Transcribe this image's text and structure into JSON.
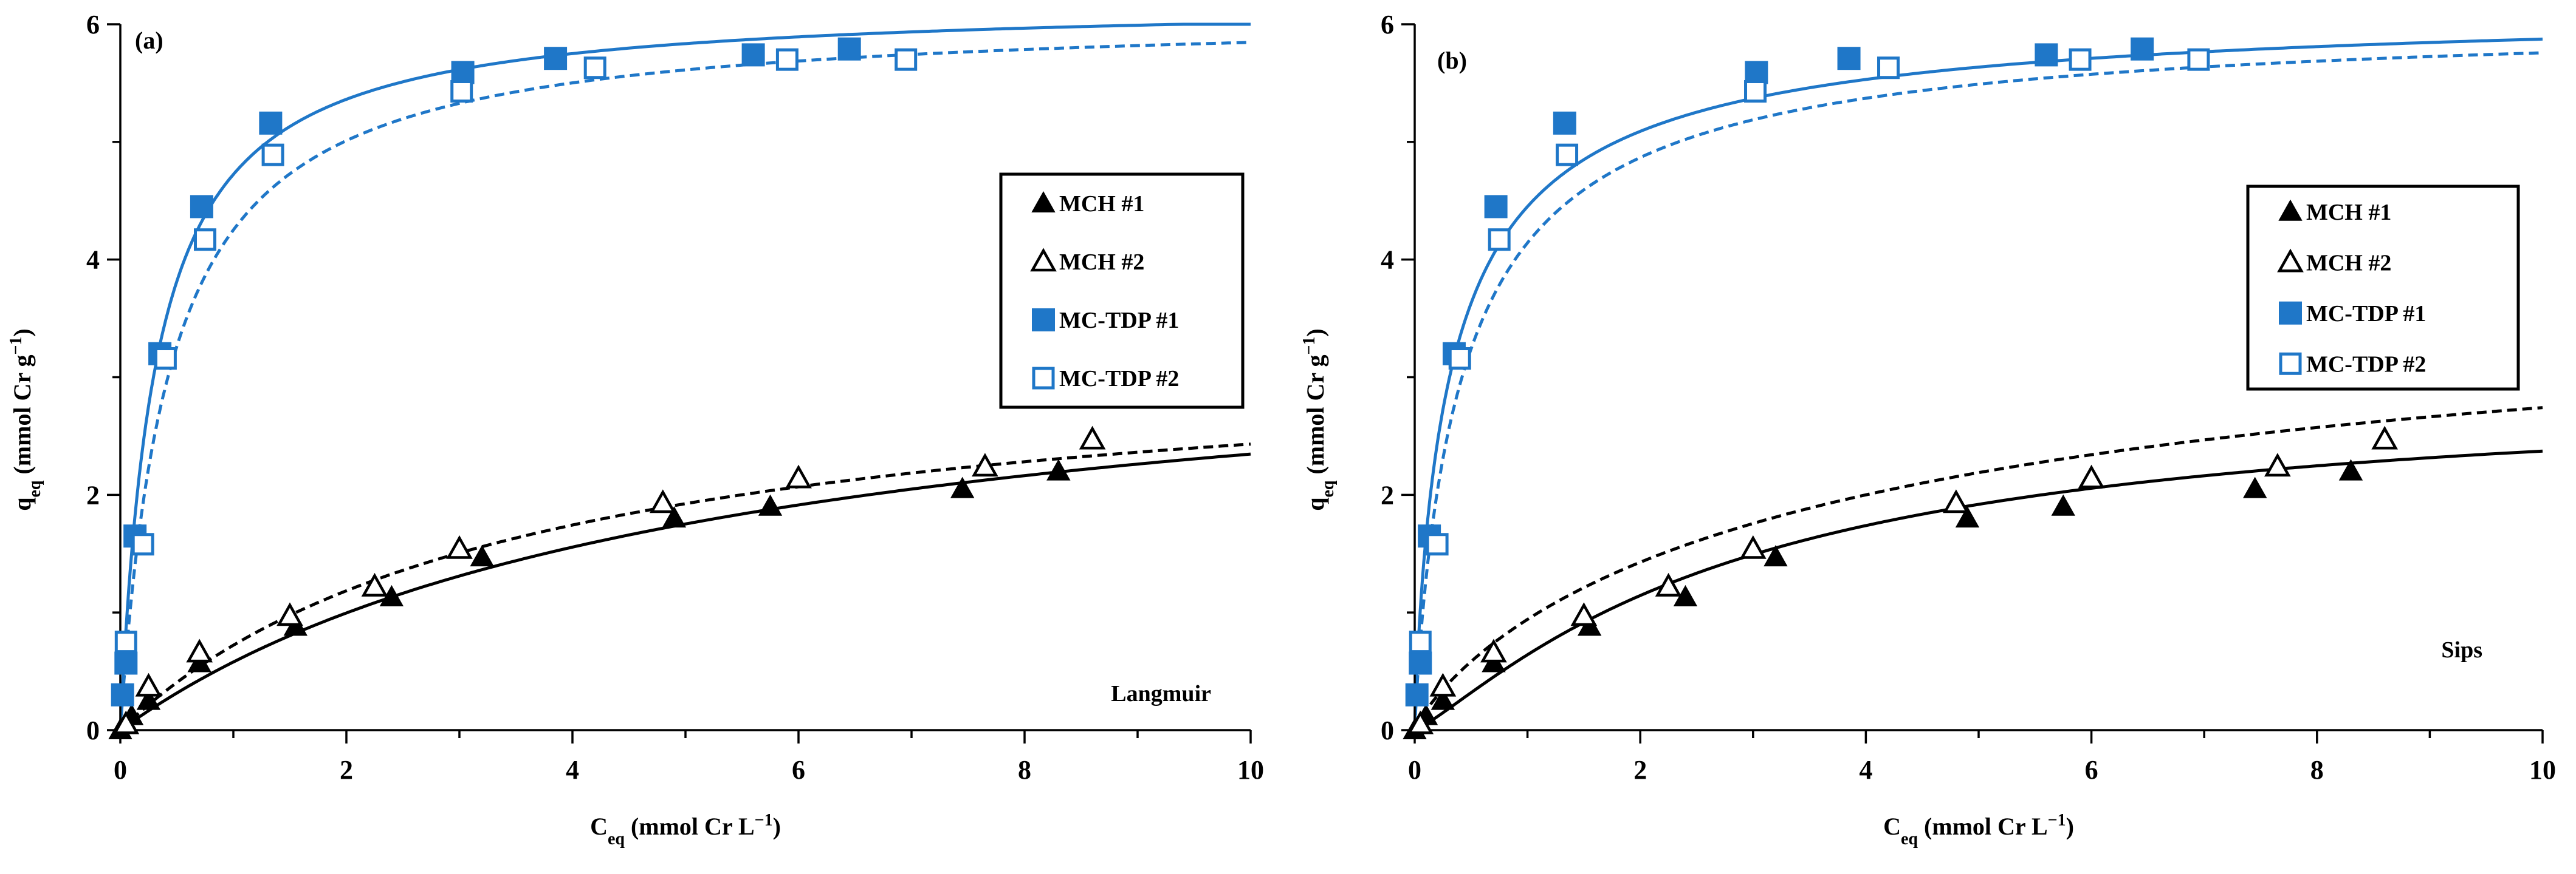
{
  "colors": {
    "blue": "#1f77c8",
    "black": "#000000"
  },
  "series_style": [
    {
      "name": "MCH #1",
      "color": "#000000",
      "marker": "filled-triangle",
      "fit_dash": "solid"
    },
    {
      "name": "MCH #2",
      "color": "#000000",
      "marker": "open-triangle",
      "fit_dash": "dashed"
    },
    {
      "name": "MC-TDP #1",
      "color": "#1f77c8",
      "marker": "filled-square",
      "fit_dash": "solid"
    },
    {
      "name": "MC-TDP #2",
      "color": "#1f77c8",
      "marker": "open-square",
      "fit_dash": "dashed"
    }
  ],
  "chart_data": [
    {
      "type": "scatter",
      "panel_label": "(a)",
      "model_label": "Langmuir",
      "xlabel": {
        "main": "C",
        "sub": "eq",
        "rest": " (mmol Cr L",
        "sup": "−1",
        "end": ")"
      },
      "ylabel": {
        "main": "q",
        "sub": "eq",
        "rest": " (mmol Cr g",
        "sup": "−1",
        "end": ")"
      },
      "xlim": [
        0,
        10
      ],
      "ylim": [
        0,
        6
      ],
      "xticks": [
        "0",
        "2",
        "4",
        "6",
        "8",
        "10"
      ],
      "yticks": [
        "0",
        "2",
        "4",
        "6"
      ],
      "legend": [
        "MCH #1",
        "MCH #2",
        "MC-TDP #1",
        "MC-TDP #2"
      ],
      "series": [
        {
          "name": "MCH #1",
          "x": [
            0.0,
            0.1,
            0.25,
            0.7,
            1.55,
            2.4,
            3.2,
            4.9,
            5.75,
            7.45,
            8.3
          ],
          "y": [
            0.0,
            0.12,
            0.25,
            0.57,
            0.88,
            1.13,
            1.47,
            1.8,
            1.9,
            2.05,
            2.2
          ],
          "fit": {
            "model": "langmuir",
            "qmax": 3.55,
            "K": 0.195
          }
        },
        {
          "name": "MCH #2",
          "x": [
            0.05,
            0.25,
            0.7,
            1.5,
            2.25,
            3.0,
            4.8,
            6.0,
            7.65,
            8.6
          ],
          "y": [
            0.05,
            0.37,
            0.66,
            0.97,
            1.22,
            1.54,
            1.93,
            2.14,
            2.24,
            2.47
          ],
          "fit": {
            "model": "langmuir",
            "qmax": 3.3,
            "K": 0.28
          }
        },
        {
          "name": "MC-TDP #1",
          "x": [
            0.02,
            0.05,
            0.13,
            0.35,
            0.72,
            1.33,
            3.03,
            3.85,
            5.6,
            6.45
          ],
          "y": [
            0.3,
            0.57,
            1.65,
            3.2,
            4.45,
            5.16,
            5.59,
            5.71,
            5.74,
            5.79
          ],
          "fit": {
            "model": "langmuir",
            "qmax": 6.2,
            "K": 3.2
          }
        },
        {
          "name": "MC-TDP #2",
          "x": [
            0.05,
            0.2,
            0.4,
            0.75,
            1.35,
            3.02,
            4.2,
            5.9,
            6.95
          ],
          "y": [
            0.75,
            1.58,
            3.16,
            4.17,
            4.89,
            5.43,
            5.63,
            5.7,
            5.7
          ],
          "fit": {
            "model": "langmuir",
            "qmax": 6.1,
            "K": 2.3
          }
        }
      ]
    },
    {
      "type": "scatter",
      "panel_label": "(b)",
      "model_label": "Sips",
      "xlabel": {
        "main": "C",
        "sub": "eq",
        "rest": " (mmol Cr L",
        "sup": "−1",
        "end": ")"
      },
      "ylabel": {
        "main": "q",
        "sub": "eq",
        "rest": " (mmol Cr g",
        "sup": "−1",
        "end": ")"
      },
      "xlim": [
        0,
        10
      ],
      "ylim": [
        0,
        6
      ],
      "xticks": [
        "0",
        "2",
        "4",
        "6",
        "8",
        "10"
      ],
      "yticks": [
        "0",
        "2",
        "4",
        "6"
      ],
      "legend": [
        "MCH #1",
        "MCH #2",
        "MC-TDP #1",
        "MC-TDP #2"
      ],
      "series": [
        {
          "name": "MCH #1",
          "x": [
            0.0,
            0.1,
            0.25,
            0.7,
            1.55,
            2.4,
            3.2,
            4.9,
            5.75,
            7.45,
            8.3
          ],
          "y": [
            0.0,
            0.12,
            0.25,
            0.57,
            0.88,
            1.13,
            1.47,
            1.8,
            1.9,
            2.05,
            2.2
          ],
          "fit": {
            "model": "sips",
            "qmax": 2.9,
            "K": 0.35,
            "n": 1.2
          }
        },
        {
          "name": "MCH #2",
          "x": [
            0.05,
            0.25,
            0.7,
            1.5,
            2.25,
            3.0,
            4.8,
            6.0,
            7.65,
            8.6
          ],
          "y": [
            0.05,
            0.37,
            0.66,
            0.97,
            1.22,
            1.54,
            1.93,
            2.14,
            2.24,
            2.47
          ],
          "fit": {
            "model": "sips",
            "qmax": 4.0,
            "K": 0.25,
            "n": 0.85
          }
        },
        {
          "name": "MC-TDP #1",
          "x": [
            0.02,
            0.05,
            0.13,
            0.35,
            0.72,
            1.33,
            3.03,
            3.85,
            5.6,
            6.45
          ],
          "y": [
            0.3,
            0.57,
            1.65,
            3.2,
            4.45,
            5.16,
            5.59,
            5.71,
            5.74,
            5.79
          ],
          "fit": {
            "model": "sips",
            "qmax": 6.2,
            "K": 3.0,
            "n": 0.85
          }
        },
        {
          "name": "MC-TDP #2",
          "x": [
            0.05,
            0.2,
            0.4,
            0.75,
            1.35,
            3.02,
            4.2,
            5.9,
            6.95
          ],
          "y": [
            0.75,
            1.58,
            3.16,
            4.17,
            4.89,
            5.43,
            5.63,
            5.7,
            5.7
          ],
          "fit": {
            "model": "sips",
            "qmax": 6.1,
            "K": 2.3,
            "n": 0.9
          }
        }
      ]
    }
  ]
}
